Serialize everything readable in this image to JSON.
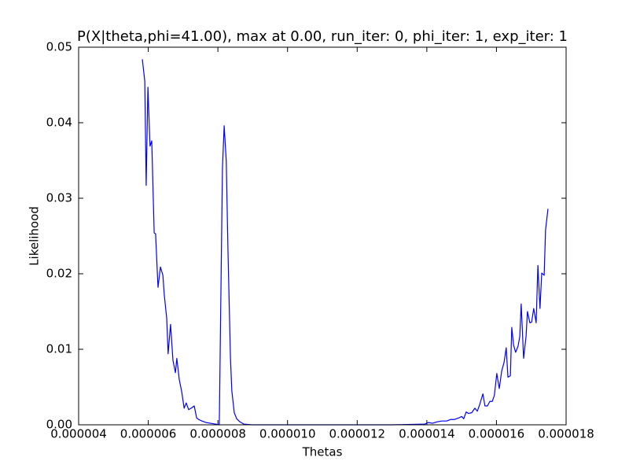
{
  "chart_data": {
    "type": "line",
    "title": "P(X|theta,phi=41.00), max at 0.00, run_iter: 0, phi_iter: 1, exp_iter: 1",
    "x_label": "Thetas",
    "y_label": "Likelihood",
    "xlim": [
      4e-06,
      1.8e-05
    ],
    "xticks": [
      4e-06,
      6e-06,
      8e-06,
      {
        "value": 1e-05,
        "label": "0.000010"
      },
      1.2e-05,
      1.4e-05,
      1.6e-05,
      1.8e-05
    ],
    "ylim": [
      0,
      0.05
    ],
    "yticks": [
      {
        "value": 0,
        "label": "0.00"
      },
      0.01,
      0.02,
      0.03,
      0.04,
      0.05
    ],
    "x": [
      5.83e-06,
      5.9e-06,
      5.94e-06,
      5.99e-06,
      6.05e-06,
      6.1e-06,
      6.17e-06,
      6.21e-06,
      6.28e-06,
      6.35e-06,
      6.42e-06,
      6.46e-06,
      6.53e-06,
      6.57e-06,
      6.64e-06,
      6.71e-06,
      6.78e-06,
      6.82e-06,
      6.89e-06,
      6.96e-06,
      7.03e-06,
      7.09e-06,
      7.16e-06,
      7.23e-06,
      7.32e-06,
      7.39e-06,
      7.45e-06,
      7.54e-06,
      7.66e-06,
      7.79e-06,
      7.93e-06,
      8.04e-06,
      8.13e-06,
      8.18e-06,
      8.24e-06,
      8.29e-06,
      8.36e-06,
      8.4e-06,
      8.47e-06,
      8.54e-06,
      8.63e-06,
      8.74e-06,
      8.97e-06,
      1.077e-05,
      1.303e-05,
      1.394e-05,
      1.405e-05,
      1.416e-05,
      1.43e-05,
      1.443e-05,
      1.457e-05,
      1.468e-05,
      1.479e-05,
      1.491e-05,
      1.5e-05,
      1.506e-05,
      1.513e-05,
      1.52e-05,
      1.529e-05,
      1.538e-05,
      1.545e-05,
      1.552e-05,
      1.561e-05,
      1.567e-05,
      1.574e-05,
      1.581e-05,
      1.588e-05,
      1.594e-05,
      1.601e-05,
      1.608e-05,
      1.615e-05,
      1.622e-05,
      1.628e-05,
      1.633e-05,
      1.64e-05,
      1.644e-05,
      1.649e-05,
      1.655e-05,
      1.662e-05,
      1.667e-05,
      1.671e-05,
      1.678e-05,
      1.685e-05,
      1.689e-05,
      1.696e-05,
      1.701e-05,
      1.707e-05,
      1.714e-05,
      1.719e-05,
      1.725e-05,
      1.73e-05,
      1.737e-05,
      1.741e-05,
      1.748e-05
    ],
    "series": [
      {
        "color": "#0000ff",
        "values": [
          0.0484,
          0.0455,
          0.0317,
          0.0447,
          0.0369,
          0.0376,
          0.0254,
          0.0253,
          0.0182,
          0.0209,
          0.0198,
          0.0172,
          0.0141,
          0.0094,
          0.0133,
          0.0085,
          0.0069,
          0.0088,
          0.006,
          0.0044,
          0.0022,
          0.0029,
          0.002,
          0.0022,
          0.0025,
          0.0009,
          0.0007,
          0.0005,
          0.0003,
          0.0002,
          0.0001,
          0,
          0.0339,
          0.0396,
          0.0349,
          0.0229,
          0.0089,
          0.0045,
          0.0016,
          0.0008,
          0.0004,
          0.0001,
          0,
          0,
          0,
          0.0001,
          0.0003,
          0.0002,
          0.0004,
          0.0005,
          0.0005,
          0.0007,
          0.0007,
          0.0009,
          0.0011,
          0.0008,
          0.0017,
          0.0015,
          0.0016,
          0.0022,
          0.0018,
          0.0027,
          0.0041,
          0.0025,
          0.0025,
          0.0031,
          0.0031,
          0.0039,
          0.0068,
          0.0048,
          0.0071,
          0.0083,
          0.0102,
          0.0063,
          0.0065,
          0.0129,
          0.0106,
          0.0096,
          0.0104,
          0.0117,
          0.016,
          0.0088,
          0.0117,
          0.015,
          0.0135,
          0.0136,
          0.0154,
          0.0135,
          0.0211,
          0.0154,
          0.0201,
          0.0198,
          0.0258,
          0.0286
        ]
      }
    ]
  }
}
